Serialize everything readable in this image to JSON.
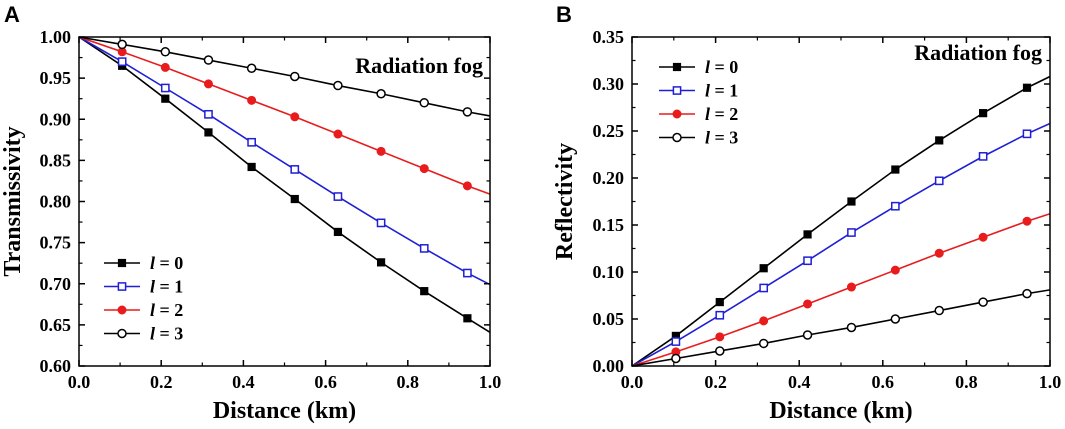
{
  "chart_data": [
    {
      "panel_label": "A",
      "type": "line",
      "annotation": "Radiation fog",
      "xlabel": "Distance (km)",
      "ylabel": "Transmissivity",
      "xlim": [
        0.0,
        1.0
      ],
      "ylim": [
        0.6,
        1.0
      ],
      "xticks": [
        "0.0",
        "0.2",
        "0.4",
        "0.6",
        "0.8",
        "1.0"
      ],
      "yticks": [
        "0.60",
        "0.65",
        "0.70",
        "0.75",
        "0.80",
        "0.85",
        "0.90",
        "0.95",
        "1.00"
      ],
      "legend_position": "bottom-left",
      "x": [
        0.0,
        0.105,
        0.21,
        0.315,
        0.42,
        0.525,
        0.63,
        0.735,
        0.84,
        0.945,
        1.0
      ],
      "series": [
        {
          "symbol": "l",
          "label": " = 0",
          "color": "#000000",
          "marker": "filled-square",
          "values": [
            1.0,
            0.965,
            0.925,
            0.884,
            0.842,
            0.803,
            0.763,
            0.726,
            0.691,
            0.658,
            0.641
          ]
        },
        {
          "symbol": "l",
          "label": " = 1",
          "color": "#1f1fd6",
          "marker": "open-square",
          "values": [
            1.0,
            0.97,
            0.938,
            0.906,
            0.872,
            0.839,
            0.806,
            0.774,
            0.743,
            0.713,
            0.699
          ]
        },
        {
          "symbol": "l",
          "label": " = 2",
          "color": "#e81c1c",
          "marker": "filled-circle",
          "values": [
            1.0,
            0.982,
            0.963,
            0.943,
            0.923,
            0.903,
            0.882,
            0.861,
            0.84,
            0.819,
            0.809
          ]
        },
        {
          "symbol": "l",
          "label": " = 3",
          "color": "#000000",
          "marker": "open-circle",
          "values": [
            1.0,
            0.991,
            0.982,
            0.972,
            0.962,
            0.952,
            0.941,
            0.931,
            0.92,
            0.909,
            0.904
          ]
        }
      ]
    },
    {
      "panel_label": "B",
      "type": "line",
      "annotation": "Radiation fog",
      "xlabel": "Distance (km)",
      "ylabel": "Reflectivity",
      "xlim": [
        0.0,
        1.0
      ],
      "ylim": [
        0.0,
        0.35
      ],
      "xticks": [
        "0.0",
        "0.2",
        "0.4",
        "0.6",
        "0.8",
        "1.0"
      ],
      "yticks": [
        "0.00",
        "0.05",
        "0.10",
        "0.15",
        "0.20",
        "0.25",
        "0.30",
        "0.35"
      ],
      "legend_position": "top-left",
      "x": [
        0.0,
        0.105,
        0.21,
        0.315,
        0.42,
        0.525,
        0.63,
        0.735,
        0.84,
        0.945,
        1.0
      ],
      "series": [
        {
          "symbol": "l",
          "label": " = 0",
          "color": "#000000",
          "marker": "filled-square",
          "values": [
            0.0,
            0.032,
            0.068,
            0.104,
            0.14,
            0.175,
            0.209,
            0.24,
            0.269,
            0.296,
            0.308
          ]
        },
        {
          "symbol": "l",
          "label": " = 1",
          "color": "#1f1fd6",
          "marker": "open-square",
          "values": [
            0.0,
            0.026,
            0.054,
            0.083,
            0.112,
            0.142,
            0.17,
            0.197,
            0.223,
            0.247,
            0.258
          ]
        },
        {
          "symbol": "l",
          "label": " = 2",
          "color": "#e81c1c",
          "marker": "filled-circle",
          "values": [
            0.0,
            0.015,
            0.031,
            0.048,
            0.066,
            0.084,
            0.102,
            0.12,
            0.137,
            0.154,
            0.162
          ]
        },
        {
          "symbol": "l",
          "label": " = 3",
          "color": "#000000",
          "marker": "open-circle",
          "values": [
            0.0,
            0.008,
            0.016,
            0.024,
            0.033,
            0.041,
            0.05,
            0.059,
            0.068,
            0.077,
            0.081
          ]
        }
      ]
    }
  ]
}
